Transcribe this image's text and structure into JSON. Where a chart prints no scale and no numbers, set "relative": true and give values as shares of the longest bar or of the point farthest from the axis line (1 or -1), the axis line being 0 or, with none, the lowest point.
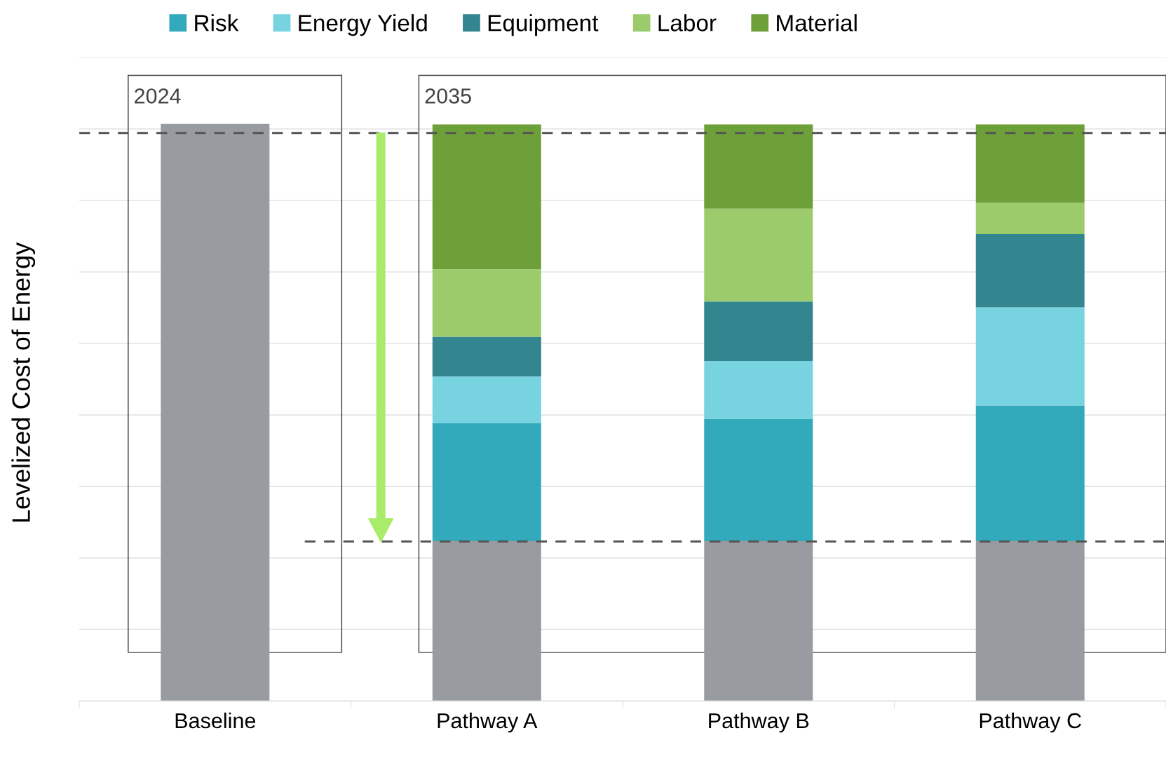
{
  "chart_data": {
    "type": "bar",
    "stacked": true,
    "relative": true,
    "ylabel": "Levelized Cost of Energy",
    "categories": [
      "Baseline",
      "Pathway A",
      "Pathway B",
      "Pathway C"
    ],
    "series": [
      {
        "color": "#989ba0",
        "values": [
          1.0,
          0.277,
          0.277,
          0.277
        ]
      },
      {
        "name": "Risk",
        "color": "#33aabb",
        "values": [
          null,
          0.204,
          0.212,
          0.235
        ]
      },
      {
        "name": "Energy Yield",
        "color": "#77d3e0",
        "values": [
          null,
          0.081,
          0.1,
          0.17
        ]
      },
      {
        "name": "Equipment",
        "color": "#338690",
        "values": [
          null,
          0.069,
          0.103,
          0.127
        ]
      },
      {
        "name": "Labor",
        "color": "#9bcb6b",
        "values": [
          null,
          0.117,
          0.161,
          0.054
        ]
      },
      {
        "name": "Material",
        "color": "#6ea03a",
        "values": [
          null,
          0.251,
          0.146,
          0.136
        ]
      }
    ],
    "ref_lines": [
      {
        "axis": "y",
        "value": 0.984,
        "color": "#555555",
        "line_style": "dashed"
      },
      {
        "axis": "y",
        "value": 0.276,
        "color": "#555555",
        "line_style": "dashed"
      }
    ],
    "annotations": [
      "2024",
      "2035"
    ],
    "grid": "y",
    "legend": "top"
  }
}
